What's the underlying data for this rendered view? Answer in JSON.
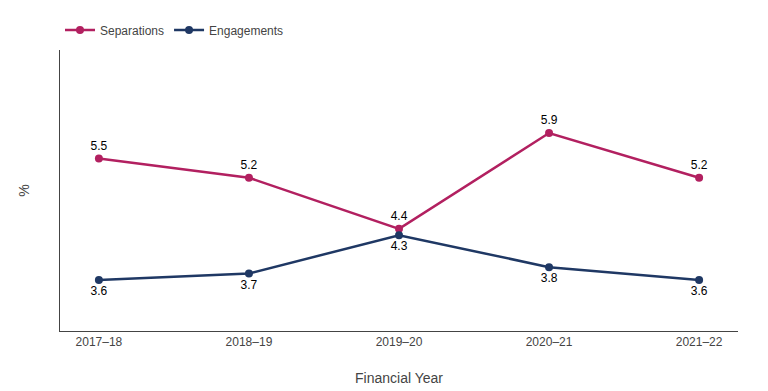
{
  "chart_data": {
    "type": "line",
    "categories": [
      "2017–18",
      "2018–19",
      "2019–20",
      "2020–21",
      "2021–22"
    ],
    "series": [
      {
        "name": "Separations",
        "color": "#B22060",
        "values": [
          5.5,
          5.2,
          4.4,
          5.9,
          5.2
        ]
      },
      {
        "name": "Engagements",
        "color": "#1F3864",
        "values": [
          3.6,
          3.7,
          4.3,
          3.8,
          3.6
        ]
      }
    ],
    "xlabel": "Financial Year",
    "ylabel": "%",
    "ylim": [
      2.8,
      7.2
    ],
    "yticks": [],
    "grid": false,
    "data_labels": true,
    "tick_labels": "x",
    "legend": "upper left",
    "marker": "circle"
  }
}
